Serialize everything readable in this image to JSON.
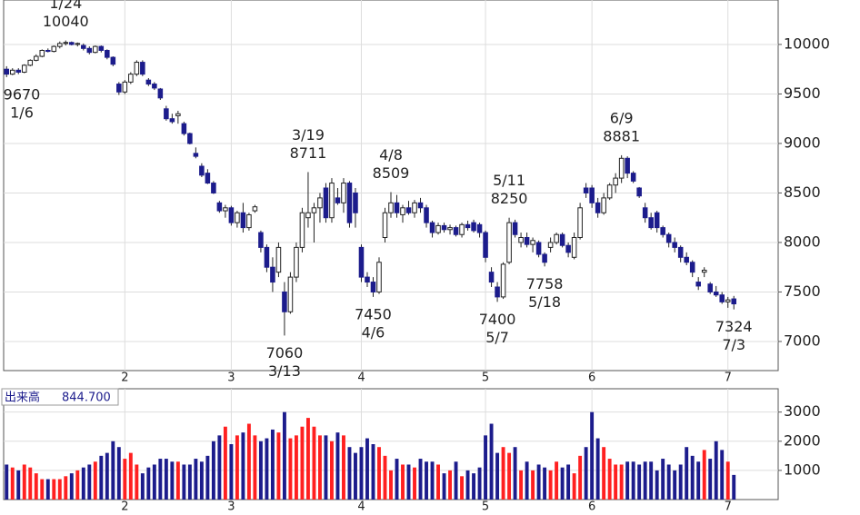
{
  "chart_data": [
    {
      "type": "candlestick",
      "up_color": "#ffffff",
      "down_color": "#1c1c8c",
      "edge_color": "#222222",
      "grid": true,
      "ylim": [
        6706,
        10449
      ],
      "yticks": [
        7000,
        7500,
        8000,
        8500,
        9000,
        9500,
        10000
      ],
      "xlim": [
        -0.5,
        130.5
      ],
      "xticks": [
        {
          "value": 20,
          "label": "2"
        },
        {
          "value": 38,
          "label": "3"
        },
        {
          "value": 60,
          "label": "4"
        },
        {
          "value": 81,
          "label": "5"
        },
        {
          "value": 99,
          "label": "6"
        },
        {
          "value": 122,
          "label": "7"
        }
      ],
      "annotations": [
        {
          "date": "1/6",
          "value": 9670,
          "position": "below"
        },
        {
          "date": "1/24",
          "value": 10040,
          "position": "above"
        },
        {
          "date": "3/13",
          "value": 7060,
          "position": "below"
        },
        {
          "date": "3/19",
          "value": 8711,
          "position": "above"
        },
        {
          "date": "4/6",
          "value": 7450,
          "position": "below"
        },
        {
          "date": "4/8",
          "value": 8509,
          "position": "above"
        },
        {
          "date": "5/7",
          "value": 7400,
          "position": "below"
        },
        {
          "date": "5/11",
          "value": 8250,
          "position": "above"
        },
        {
          "date": "5/18",
          "value": 7758,
          "position": "below"
        },
        {
          "date": "6/9",
          "value": 8881,
          "position": "above"
        },
        {
          "date": "7/3",
          "value": 7324,
          "position": "below"
        }
      ],
      "candles": [
        [
          9750,
          9780,
          9670,
          9700
        ],
        [
          9700,
          9760,
          9690,
          9740
        ],
        [
          9740,
          9760,
          9700,
          9720
        ],
        [
          9720,
          9800,
          9710,
          9790
        ],
        [
          9790,
          9850,
          9780,
          9840
        ],
        [
          9840,
          9900,
          9830,
          9880
        ],
        [
          9880,
          9950,
          9870,
          9940
        ],
        [
          9940,
          9960,
          9920,
          9930
        ],
        [
          9930,
          9990,
          9920,
          9980
        ],
        [
          9980,
          10030,
          9960,
          10010
        ],
        [
          10010,
          10040,
          9990,
          10020
        ],
        [
          10020,
          10030,
          9990,
          10000
        ],
        [
          10000,
          10020,
          9980,
          10010
        ],
        [
          9990,
          10010,
          9940,
          9960
        ],
        [
          9960,
          9980,
          9900,
          9920
        ],
        [
          9920,
          9990,
          9910,
          9980
        ],
        [
          9980,
          9990,
          9920,
          9940
        ],
        [
          9940,
          9950,
          9850,
          9870
        ],
        [
          9870,
          9880,
          9780,
          9800
        ],
        [
          9600,
          9620,
          9490,
          9520
        ],
        [
          9520,
          9640,
          9500,
          9620
        ],
        [
          9620,
          9720,
          9600,
          9700
        ],
        [
          9700,
          9840,
          9680,
          9820
        ],
        [
          9820,
          9840,
          9680,
          9700
        ],
        [
          9640,
          9660,
          9580,
          9600
        ],
        [
          9600,
          9620,
          9540,
          9560
        ],
        [
          9550,
          9560,
          9440,
          9460
        ],
        [
          9350,
          9380,
          9230,
          9250
        ],
        [
          9250,
          9300,
          9200,
          9220
        ],
        [
          9280,
          9330,
          9200,
          9300
        ],
        [
          9200,
          9220,
          9080,
          9100
        ],
        [
          9100,
          9110,
          8990,
          9000
        ],
        [
          8900,
          8960,
          8850,
          8870
        ],
        [
          8770,
          8800,
          8660,
          8680
        ],
        [
          8700,
          8740,
          8590,
          8600
        ],
        [
          8600,
          8620,
          8490,
          8500
        ],
        [
          8400,
          8420,
          8300,
          8320
        ],
        [
          8320,
          8380,
          8250,
          8350
        ],
        [
          8350,
          8370,
          8170,
          8200
        ],
        [
          8200,
          8320,
          8150,
          8300
        ],
        [
          8300,
          8400,
          8100,
          8150
        ],
        [
          8150,
          8300,
          8120,
          8280
        ],
        [
          8320,
          8380,
          8300,
          8360
        ],
        [
          8100,
          8120,
          7900,
          7950
        ],
        [
          7950,
          7980,
          7700,
          7750
        ],
        [
          7750,
          7850,
          7500,
          7600
        ],
        [
          7700,
          8000,
          7650,
          7950
        ],
        [
          7500,
          7600,
          7060,
          7300
        ],
        [
          7300,
          7700,
          7280,
          7650
        ],
        [
          7650,
          8000,
          7600,
          7950
        ],
        [
          7950,
          8350,
          7900,
          8300
        ],
        [
          8250,
          8711,
          8150,
          8300
        ],
        [
          8300,
          8400,
          8000,
          8350
        ],
        [
          8350,
          8500,
          8200,
          8450
        ],
        [
          8550,
          8600,
          8200,
          8250
        ],
        [
          8250,
          8650,
          8200,
          8600
        ],
        [
          8450,
          8550,
          8380,
          8400
        ],
        [
          8400,
          8650,
          8300,
          8600
        ],
        [
          8600,
          8620,
          8150,
          8200
        ],
        [
          8500,
          8550,
          8150,
          8300
        ],
        [
          7950,
          7980,
          7600,
          7650
        ],
        [
          7650,
          7700,
          7550,
          7600
        ],
        [
          7600,
          7650,
          7450,
          7500
        ],
        [
          7500,
          7850,
          7480,
          7800
        ],
        [
          8050,
          8350,
          8000,
          8300
        ],
        [
          8300,
          8509,
          8250,
          8400
        ],
        [
          8400,
          8480,
          8250,
          8300
        ],
        [
          8280,
          8380,
          8200,
          8350
        ],
        [
          8350,
          8420,
          8280,
          8300
        ],
        [
          8300,
          8430,
          8250,
          8400
        ],
        [
          8400,
          8450,
          8300,
          8350
        ],
        [
          8350,
          8380,
          8150,
          8200
        ],
        [
          8200,
          8220,
          8050,
          8100
        ],
        [
          8100,
          8200,
          8080,
          8170
        ],
        [
          8170,
          8200,
          8100,
          8130
        ],
        [
          8130,
          8180,
          8080,
          8150
        ],
        [
          8150,
          8170,
          8060,
          8080
        ],
        [
          8080,
          8200,
          8050,
          8180
        ],
        [
          8180,
          8220,
          8120,
          8150
        ],
        [
          8200,
          8230,
          8100,
          8120
        ],
        [
          8180,
          8200,
          8050,
          8100
        ],
        [
          8100,
          8120,
          7800,
          7850
        ],
        [
          7700,
          7750,
          7550,
          7600
        ],
        [
          7550,
          7600,
          7400,
          7450
        ],
        [
          7450,
          7800,
          7430,
          7780
        ],
        [
          7800,
          8250,
          7780,
          8200
        ],
        [
          8200,
          8230,
          8050,
          8080
        ],
        [
          8000,
          8100,
          7950,
          8050
        ],
        [
          8050,
          8100,
          7950,
          7980
        ],
        [
          7980,
          8050,
          7900,
          8020
        ],
        [
          8000,
          8020,
          7850,
          7880
        ],
        [
          7880,
          7900,
          7758,
          7800
        ],
        [
          7950,
          8050,
          7900,
          8000
        ],
        [
          8000,
          8100,
          7980,
          8080
        ],
        [
          8080,
          8100,
          7950,
          7970
        ],
        [
          7970,
          8000,
          7850,
          7900
        ],
        [
          7850,
          8100,
          7830,
          8050
        ],
        [
          8050,
          8400,
          8030,
          8350
        ],
        [
          8550,
          8600,
          8450,
          8500
        ],
        [
          8550,
          8580,
          8350,
          8400
        ],
        [
          8400,
          8450,
          8250,
          8300
        ],
        [
          8300,
          8500,
          8280,
          8450
        ],
        [
          8450,
          8600,
          8430,
          8580
        ],
        [
          8580,
          8700,
          8500,
          8650
        ],
        [
          8650,
          8881,
          8600,
          8850
        ],
        [
          8850,
          8870,
          8650,
          8700
        ],
        [
          8700,
          8720,
          8600,
          8620
        ],
        [
          8550,
          8560,
          8450,
          8470
        ],
        [
          8350,
          8400,
          8200,
          8250
        ],
        [
          8250,
          8300,
          8130,
          8150
        ],
        [
          8300,
          8320,
          8100,
          8150
        ],
        [
          8150,
          8170,
          8050,
          8080
        ],
        [
          8080,
          8100,
          7950,
          8000
        ],
        [
          8000,
          8050,
          7900,
          7950
        ],
        [
          7950,
          7970,
          7800,
          7850
        ],
        [
          7850,
          7900,
          7770,
          7800
        ],
        [
          7800,
          7820,
          7650,
          7700
        ],
        [
          7600,
          7650,
          7520,
          7560
        ],
        [
          7700,
          7750,
          7650,
          7720
        ],
        [
          7580,
          7600,
          7480,
          7500
        ],
        [
          7500,
          7560,
          7450,
          7470
        ],
        [
          7470,
          7500,
          7380,
          7400
        ],
        [
          7400,
          7450,
          7340,
          7420
        ],
        [
          7430,
          7460,
          7324,
          7380
        ]
      ]
    },
    {
      "type": "bar",
      "title": "出来高",
      "current_label": "844.700",
      "up_color": "#ff2020",
      "down_color": "#1c1c8c",
      "ylim": [
        0,
        3800
      ],
      "yticks": [
        1000,
        2000,
        3000
      ],
      "values": [
        1200,
        1100,
        1000,
        1200,
        1100,
        900,
        700,
        700,
        700,
        700,
        800,
        900,
        1000,
        1100,
        1200,
        1300,
        1500,
        1600,
        2000,
        1800,
        1400,
        1600,
        1200,
        900,
        1100,
        1200,
        1400,
        1400,
        1300,
        1300,
        1200,
        1200,
        1400,
        1300,
        1500,
        2000,
        2200,
        2500,
        1900,
        2200,
        2300,
        2600,
        2200,
        2000,
        2100,
        2400,
        2300,
        3000,
        2100,
        2200,
        2500,
        2800,
        2500,
        2200,
        2200,
        2000,
        2300,
        2200,
        1800,
        1600,
        1800,
        2100,
        1900,
        1800,
        1500,
        1000,
        1400,
        1200,
        1200,
        1100,
        1400,
        1300,
        1300,
        1200,
        900,
        1000,
        1300,
        800,
        1000,
        900,
        1100,
        2200,
        2600,
        1600,
        1800,
        1600,
        1800,
        1000,
        1300,
        1000,
        1200,
        1100,
        1000,
        1300,
        1100,
        1200,
        900,
        1500,
        1800,
        3000,
        2100,
        1800,
        1400,
        1200,
        1200,
        1300,
        1300,
        1200,
        1300,
        1300,
        1000,
        1400,
        1200,
        1000,
        1200,
        1800,
        1500,
        1300,
        1700,
        1400,
        2000,
        1700,
        1300,
        844.7
      ]
    }
  ]
}
